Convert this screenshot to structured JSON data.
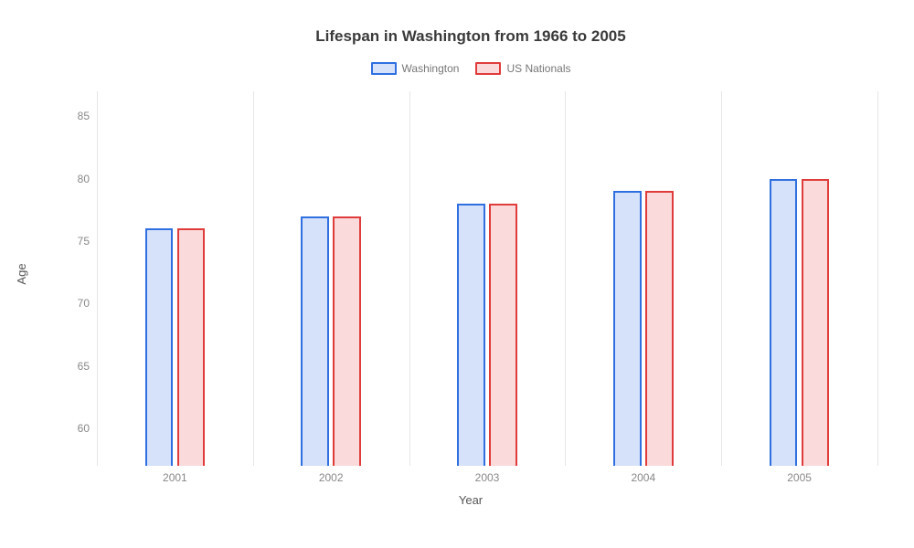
{
  "chart": {
    "type": "bar",
    "title": "Lifespan in Washington from 1966 to 2005",
    "title_fontsize": 17,
    "title_color": "#3a3a3a",
    "xlabel": "Year",
    "ylabel": "Age",
    "axis_label_fontsize": 13,
    "axis_label_color": "#555555",
    "tick_fontsize": 12,
    "tick_color": "#888888",
    "legend_fontsize": 12,
    "legend_color": "#777777",
    "background_color": "#ffffff",
    "grid_color": "#e6e6e6",
    "ylim": [
      57,
      87
    ],
    "ytick_step": 5,
    "yticks": [
      60,
      65,
      70,
      75,
      80,
      85
    ],
    "categories": [
      "2001",
      "2002",
      "2003",
      "2004",
      "2005"
    ],
    "bar_width_pct": 3.6,
    "bar_gap_pct": 0.5,
    "series": [
      {
        "name": "Washington",
        "values": [
          76,
          77,
          78,
          79,
          80
        ],
        "stroke_color": "#2f6fe0",
        "fill_color": "#d6e2fa"
      },
      {
        "name": "US Nationals",
        "values": [
          76,
          77,
          78,
          79,
          80
        ],
        "stroke_color": "#e03c3c",
        "fill_color": "#fadada"
      }
    ]
  }
}
